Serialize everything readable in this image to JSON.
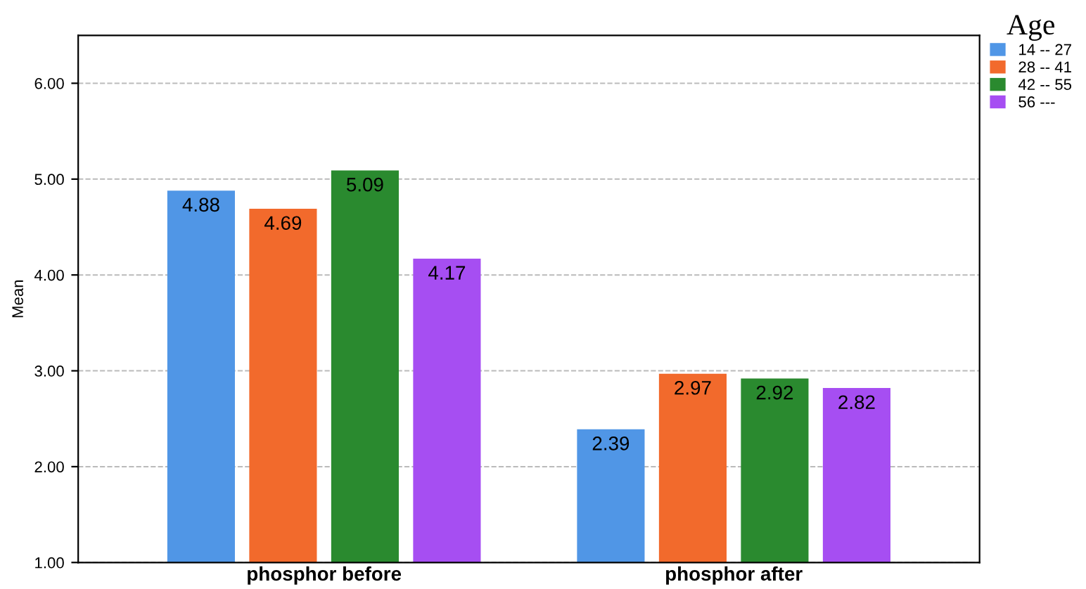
{
  "chart_data": {
    "type": "bar",
    "ylabel": "Mean",
    "legend_title": "Age",
    "categories": [
      "phosphor before",
      "phosphor after"
    ],
    "series": [
      {
        "name": "14 -- 27",
        "color": "#5096e6",
        "values": [
          4.88,
          2.39
        ]
      },
      {
        "name": "28 -- 41",
        "color": "#f26a2c",
        "values": [
          4.69,
          2.97
        ]
      },
      {
        "name": "42 -- 55",
        "color": "#2a8a2f",
        "values": [
          5.09,
          2.92
        ]
      },
      {
        "name": "56 ---",
        "color": "#a64ef2",
        "values": [
          4.17,
          2.82
        ]
      }
    ],
    "ylim": [
      1.0,
      6.5
    ],
    "yticks": [
      {
        "value": 1,
        "label": "1.00"
      },
      {
        "value": 2,
        "label": "2.00"
      },
      {
        "value": 3,
        "label": "3.00"
      },
      {
        "value": 4,
        "label": "4.00"
      },
      {
        "value": 5,
        "label": "5.00"
      },
      {
        "value": 6,
        "label": "6.00"
      }
    ],
    "grid": "y",
    "legend": "top right",
    "data_labels": true
  }
}
